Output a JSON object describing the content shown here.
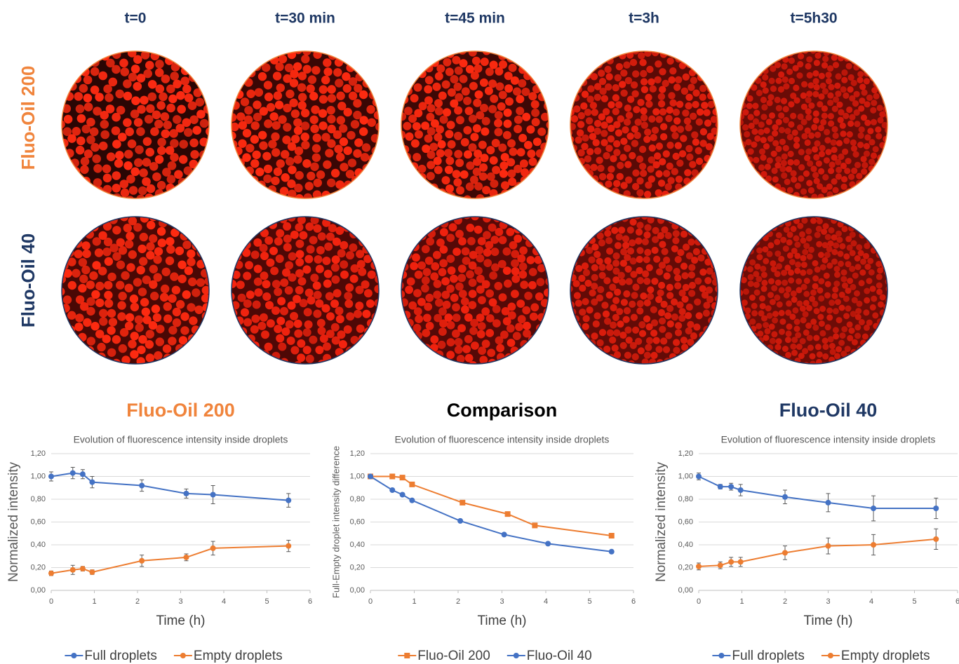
{
  "columns": [
    "t=0",
    "t=30 min",
    "t=45 min",
    "t=3h",
    "t=5h30"
  ],
  "rows": [
    {
      "label": "Fluo-Oil 200",
      "color": "#f0843c"
    },
    {
      "label": "Fluo-Oil 40",
      "color": "#1f3864"
    }
  ],
  "chart_data": [
    {
      "type": "line",
      "heading": "Fluo-Oil 200",
      "heading_color": "#f0843c",
      "title": "Evolution of fluorescence intensity inside droplets",
      "ylabel": "Normalized intensity",
      "xlabel": "Time (h)",
      "xlim": [
        0,
        6
      ],
      "xticks": [
        0,
        1,
        2,
        3,
        4,
        5,
        6
      ],
      "ylim": [
        0,
        1.2
      ],
      "yticks": [
        {
          "value": 0,
          "label": "0,00"
        },
        {
          "value": 0.2,
          "label": "0,20"
        },
        {
          "value": 0.4,
          "label": "0,40"
        },
        {
          "value": 0.6,
          "label": "0,60"
        },
        {
          "value": 0.8,
          "label": "0,80"
        },
        {
          "value": 1.0,
          "label": "1,00"
        },
        {
          "value": 1.2,
          "label": "1,20"
        }
      ],
      "grid": true,
      "legend": "bottom",
      "series": [
        {
          "name": "Full droplets",
          "color": "#4472c4",
          "marker": "circle",
          "x": [
            0,
            0.5,
            0.73,
            0.95,
            2.1,
            3.13,
            3.75,
            5.5
          ],
          "values": [
            1.0,
            1.03,
            1.02,
            0.95,
            0.92,
            0.85,
            0.84,
            0.79
          ],
          "errors": [
            0.04,
            0.05,
            0.04,
            0.05,
            0.05,
            0.04,
            0.08,
            0.06
          ]
        },
        {
          "name": "Empty droplets",
          "color": "#ed7d31",
          "marker": "circle",
          "x": [
            0,
            0.5,
            0.73,
            0.95,
            2.1,
            3.13,
            3.75,
            5.5
          ],
          "values": [
            0.15,
            0.18,
            0.19,
            0.16,
            0.26,
            0.29,
            0.37,
            0.39
          ],
          "errors": [
            0.02,
            0.04,
            0.02,
            0.02,
            0.05,
            0.03,
            0.06,
            0.05
          ]
        }
      ]
    },
    {
      "type": "line",
      "heading": "Comparison",
      "heading_color": "#000000",
      "title": "Evolution of fluorescence intensity inside droplets",
      "ylabel": "Full-Empty droplet intensity difference",
      "xlabel": "Time (h)",
      "xlim": [
        0,
        6
      ],
      "xticks": [
        0,
        1,
        2,
        3,
        4,
        5,
        6
      ],
      "ylim": [
        0,
        1.2
      ],
      "yticks": [
        {
          "value": 0,
          "label": "0,00"
        },
        {
          "value": 0.2,
          "label": "0,20"
        },
        {
          "value": 0.4,
          "label": "0,40"
        },
        {
          "value": 0.6,
          "label": "0,60"
        },
        {
          "value": 0.8,
          "label": "0,80"
        },
        {
          "value": 1.0,
          "label": "1,00"
        },
        {
          "value": 1.2,
          "label": "1,20"
        }
      ],
      "grid": true,
      "legend": "bottom",
      "series": [
        {
          "name": "Fluo-Oil 200",
          "color": "#ed7d31",
          "marker": "square",
          "x": [
            0,
            0.5,
            0.73,
            0.95,
            2.1,
            3.13,
            3.75,
            5.5
          ],
          "values": [
            1.0,
            1.0,
            0.99,
            0.93,
            0.77,
            0.67,
            0.57,
            0.48
          ]
        },
        {
          "name": "Fluo-Oil 40",
          "color": "#4472c4",
          "marker": "circle",
          "x": [
            0,
            0.5,
            0.73,
            0.95,
            2.05,
            3.05,
            4.05,
            5.5
          ],
          "values": [
            1.0,
            0.88,
            0.84,
            0.79,
            0.61,
            0.49,
            0.41,
            0.34
          ]
        }
      ]
    },
    {
      "type": "line",
      "heading": "Fluo-Oil 40",
      "heading_color": "#1f3864",
      "title": "Evolution of fluorescence intensity inside droplets",
      "ylabel": "Normalized intensity",
      "xlabel": "Time (h)",
      "xlim": [
        0,
        6
      ],
      "xticks": [
        0,
        1,
        2,
        3,
        4,
        5,
        6
      ],
      "ylim": [
        0,
        1.2
      ],
      "yticks": [
        {
          "value": 0,
          "label": "0,00"
        },
        {
          "value": 0.2,
          "label": "0,20"
        },
        {
          "value": 0.4,
          "label": "0,40"
        },
        {
          "value": 0.6,
          "label": "0,60"
        },
        {
          "value": 0.8,
          "label": "0,80"
        },
        {
          "value": 1.0,
          "label": "1,00"
        },
        {
          "value": 1.2,
          "label": "1,20"
        }
      ],
      "grid": true,
      "legend": "bottom",
      "series": [
        {
          "name": "Full droplets",
          "color": "#4472c4",
          "marker": "circle",
          "x": [
            0,
            0.5,
            0.75,
            0.97,
            2.0,
            3.0,
            4.05,
            5.5
          ],
          "values": [
            1.0,
            0.91,
            0.91,
            0.88,
            0.82,
            0.77,
            0.72,
            0.72
          ],
          "errors": [
            0.03,
            0.02,
            0.03,
            0.05,
            0.06,
            0.08,
            0.11,
            0.09
          ]
        },
        {
          "name": "Empty droplets",
          "color": "#ed7d31",
          "marker": "circle",
          "x": [
            0,
            0.5,
            0.75,
            0.97,
            2.0,
            3.0,
            4.05,
            5.5
          ],
          "values": [
            0.21,
            0.22,
            0.25,
            0.25,
            0.33,
            0.39,
            0.4,
            0.45
          ],
          "errors": [
            0.03,
            0.03,
            0.04,
            0.04,
            0.06,
            0.07,
            0.09,
            0.09
          ]
        }
      ]
    }
  ]
}
